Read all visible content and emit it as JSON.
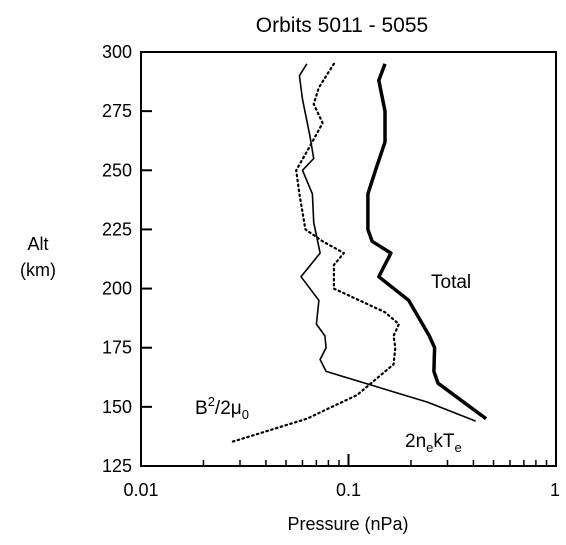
{
  "chart_data": {
    "type": "line",
    "title": "Orbits 5011 - 5055",
    "xlabel": "Pressure (nPa)",
    "ylabel_line1": "Alt",
    "ylabel_line2": "(km)",
    "x_scale": "log",
    "xlim": [
      0.01,
      1
    ],
    "ylim": [
      125,
      300
    ],
    "x_ticks": [
      0.01,
      0.1,
      1
    ],
    "x_tick_labels": [
      "0.01",
      "0.1",
      "1"
    ],
    "y_ticks": [
      125,
      150,
      175,
      200,
      225,
      250,
      275,
      300
    ],
    "y_tick_labels": [
      "125",
      "150",
      "175",
      "200",
      "225",
      "250",
      "275",
      "300"
    ],
    "grid": false,
    "series": [
      {
        "key": "total",
        "label": "Total",
        "style": "thick-solid",
        "color": "#000000",
        "x": [
          0.15,
          0.14,
          0.15,
          0.15,
          0.135,
          0.124,
          0.124,
          0.13,
          0.16,
          0.14,
          0.195,
          0.245,
          0.26,
          0.258,
          0.27,
          0.46
        ],
        "y": [
          295,
          288,
          275,
          262,
          250,
          240,
          225,
          220,
          215,
          205,
          195,
          180,
          175,
          165,
          160,
          145
        ]
      },
      {
        "key": "thermal",
        "label_main": "2n",
        "label_sub1": "e",
        "label_mid": "kT",
        "label_sub2": "e",
        "style": "thin-solid",
        "color": "#000000",
        "x": [
          0.063,
          0.058,
          0.06,
          0.065,
          0.068,
          0.06,
          0.067,
          0.068,
          0.073,
          0.059,
          0.072,
          0.07,
          0.077,
          0.078,
          0.073,
          0.078,
          0.24,
          0.41
        ],
        "y": [
          295,
          290,
          280,
          265,
          255,
          250,
          240,
          228,
          215,
          205,
          195,
          185,
          180,
          175,
          170,
          165,
          152,
          144
        ]
      },
      {
        "key": "magnetic",
        "label_main": "B",
        "label_sup": "2",
        "label_mid": "/2μ",
        "label_sub": "0",
        "style": "dotted",
        "color": "#000000",
        "x": [
          0.085,
          0.072,
          0.068,
          0.075,
          0.065,
          0.056,
          0.058,
          0.062,
          0.075,
          0.095,
          0.085,
          0.085,
          0.15,
          0.175,
          0.165,
          0.168,
          0.165,
          0.11,
          0.063,
          0.032,
          0.027
        ],
        "y": [
          295,
          285,
          278,
          270,
          260,
          250,
          240,
          225,
          220,
          215,
          210,
          200,
          190,
          185,
          180,
          175,
          168,
          155,
          145,
          137,
          135
        ]
      }
    ]
  }
}
